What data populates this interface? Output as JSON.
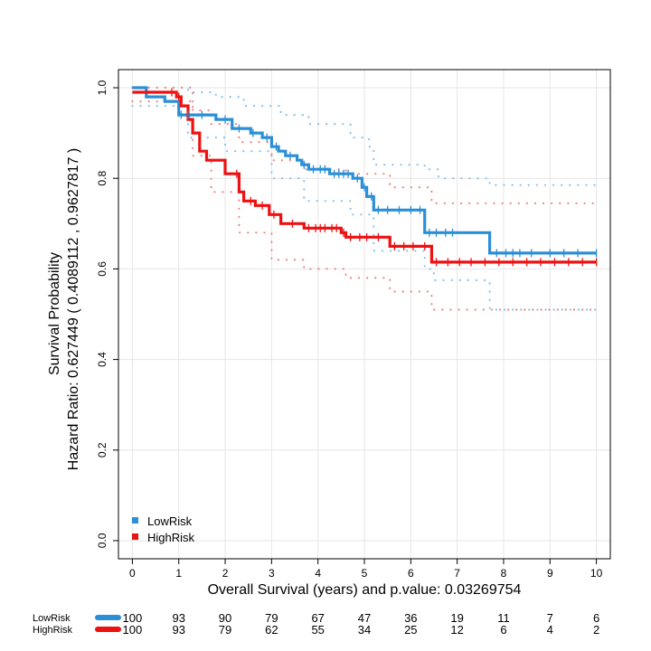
{
  "chart_data": {
    "type": "line",
    "subtype": "kaplan-meier",
    "xlabel_prefix": "Overall Survival (years) and p.value: ",
    "p_value": "0.03269754",
    "ylabel_line1": "Survival Probability",
    "ylabel_line2": "Hazard Ratio: 0.627449  ( 0.4089112 ,  0.9627817 )",
    "xlim": [
      -0.3,
      10.3
    ],
    "ylim": [
      -0.04,
      1.04
    ],
    "x_ticks": [
      0,
      1,
      2,
      3,
      4,
      5,
      6,
      7,
      8,
      9,
      10
    ],
    "y_ticks": [
      0.0,
      0.2,
      0.4,
      0.6,
      0.8,
      1.0
    ],
    "y_tick_labels": [
      "0.0",
      "0.2",
      "0.4",
      "0.6",
      "0.8",
      "1.0"
    ],
    "grid": true,
    "legend_position": "bottom-left",
    "series": [
      {
        "name": "LowRisk",
        "color": "#2b8fd6",
        "ci_color": "#87c1ea",
        "steps": [
          [
            0,
            1.0
          ],
          [
            0.3,
            0.98
          ],
          [
            0.7,
            0.97
          ],
          [
            1.0,
            0.94
          ],
          [
            1.8,
            0.93
          ],
          [
            2.15,
            0.91
          ],
          [
            2.55,
            0.9
          ],
          [
            2.8,
            0.89
          ],
          [
            3.0,
            0.87
          ],
          [
            3.15,
            0.86
          ],
          [
            3.3,
            0.85
          ],
          [
            3.55,
            0.84
          ],
          [
            3.65,
            0.83
          ],
          [
            3.8,
            0.82
          ],
          [
            4.25,
            0.81
          ],
          [
            4.75,
            0.8
          ],
          [
            4.95,
            0.78
          ],
          [
            5.05,
            0.76
          ],
          [
            5.2,
            0.73
          ],
          [
            6.3,
            0.68
          ],
          [
            7.7,
            0.635
          ],
          [
            10.0,
            0.635
          ]
        ],
        "upper": [
          [
            0,
            1.0
          ],
          [
            1.2,
            0.99
          ],
          [
            1.8,
            0.98
          ],
          [
            2.4,
            0.96
          ],
          [
            3.2,
            0.94
          ],
          [
            3.8,
            0.92
          ],
          [
            4.7,
            0.89
          ],
          [
            5.1,
            0.87
          ],
          [
            5.2,
            0.83
          ],
          [
            6.3,
            0.82
          ],
          [
            6.6,
            0.8
          ],
          [
            7.7,
            0.785
          ],
          [
            10.0,
            0.785
          ]
        ],
        "lower": [
          [
            0,
            0.96
          ],
          [
            1.2,
            0.89
          ],
          [
            2.0,
            0.86
          ],
          [
            3.0,
            0.8
          ],
          [
            3.7,
            0.75
          ],
          [
            4.7,
            0.72
          ],
          [
            5.2,
            0.64
          ],
          [
            6.3,
            0.6
          ],
          [
            6.5,
            0.575
          ],
          [
            7.7,
            0.51
          ],
          [
            10.0,
            0.51
          ]
        ],
        "censor_x": [
          1.05,
          1.2,
          1.5,
          2.0,
          2.3,
          2.6,
          2.9,
          3.1,
          3.4,
          3.7,
          3.9,
          4.05,
          4.15,
          4.35,
          4.45,
          4.55,
          4.65,
          4.85,
          5.0,
          5.15,
          5.3,
          5.5,
          5.75,
          6.0,
          6.2,
          6.4,
          6.55,
          6.75,
          6.9,
          7.85,
          8.05,
          8.2,
          8.35,
          8.6,
          9.0,
          9.3,
          9.6,
          10.0
        ]
      },
      {
        "name": "HighRisk",
        "color": "#ee1111",
        "ci_color": "#f08585",
        "steps": [
          [
            0,
            0.99
          ],
          [
            0.95,
            0.98
          ],
          [
            1.05,
            0.96
          ],
          [
            1.2,
            0.93
          ],
          [
            1.3,
            0.9
          ],
          [
            1.45,
            0.86
          ],
          [
            1.6,
            0.84
          ],
          [
            2.0,
            0.81
          ],
          [
            2.3,
            0.77
          ],
          [
            2.4,
            0.75
          ],
          [
            2.65,
            0.74
          ],
          [
            2.95,
            0.72
          ],
          [
            3.2,
            0.7
          ],
          [
            3.7,
            0.69
          ],
          [
            4.5,
            0.68
          ],
          [
            4.6,
            0.67
          ],
          [
            5.55,
            0.65
          ],
          [
            6.45,
            0.615
          ],
          [
            10.0,
            0.615
          ]
        ],
        "upper": [
          [
            0,
            1.0
          ],
          [
            1.3,
            0.95
          ],
          [
            1.7,
            0.92
          ],
          [
            2.3,
            0.88
          ],
          [
            3.0,
            0.84
          ],
          [
            3.7,
            0.82
          ],
          [
            4.6,
            0.81
          ],
          [
            5.55,
            0.78
          ],
          [
            6.45,
            0.745
          ],
          [
            10.0,
            0.745
          ]
        ],
        "lower": [
          [
            0,
            0.97
          ],
          [
            1.3,
            0.85
          ],
          [
            1.7,
            0.77
          ],
          [
            2.3,
            0.68
          ],
          [
            3.0,
            0.62
          ],
          [
            3.7,
            0.6
          ],
          [
            4.6,
            0.58
          ],
          [
            5.55,
            0.55
          ],
          [
            6.45,
            0.51
          ],
          [
            10.0,
            0.51
          ]
        ],
        "censor_x": [
          0.85,
          1.0,
          2.25,
          2.55,
          2.8,
          3.05,
          3.45,
          3.8,
          3.95,
          4.05,
          4.15,
          4.3,
          4.4,
          4.55,
          4.7,
          4.9,
          5.05,
          5.3,
          5.65,
          5.85,
          6.05,
          6.3,
          6.55,
          6.8,
          7.05,
          7.3,
          7.6,
          7.9,
          8.2,
          8.5,
          8.8,
          9.1,
          9.4,
          9.7,
          10.0
        ]
      }
    ],
    "risk_table": {
      "x": [
        0,
        1,
        2,
        3,
        4,
        5,
        6,
        7,
        8,
        9,
        10
      ],
      "rows": [
        {
          "name": "LowRisk",
          "color": "#2b8fd6",
          "values": [
            "100",
            "93",
            "90",
            "79",
            "67",
            "47",
            "36",
            "19",
            "11",
            "7",
            "6"
          ]
        },
        {
          "name": "HighRisk",
          "color": "#ee1111",
          "values": [
            "100",
            "93",
            "79",
            "62",
            "55",
            "34",
            "25",
            "12",
            "6",
            "4",
            "2"
          ]
        }
      ]
    }
  }
}
